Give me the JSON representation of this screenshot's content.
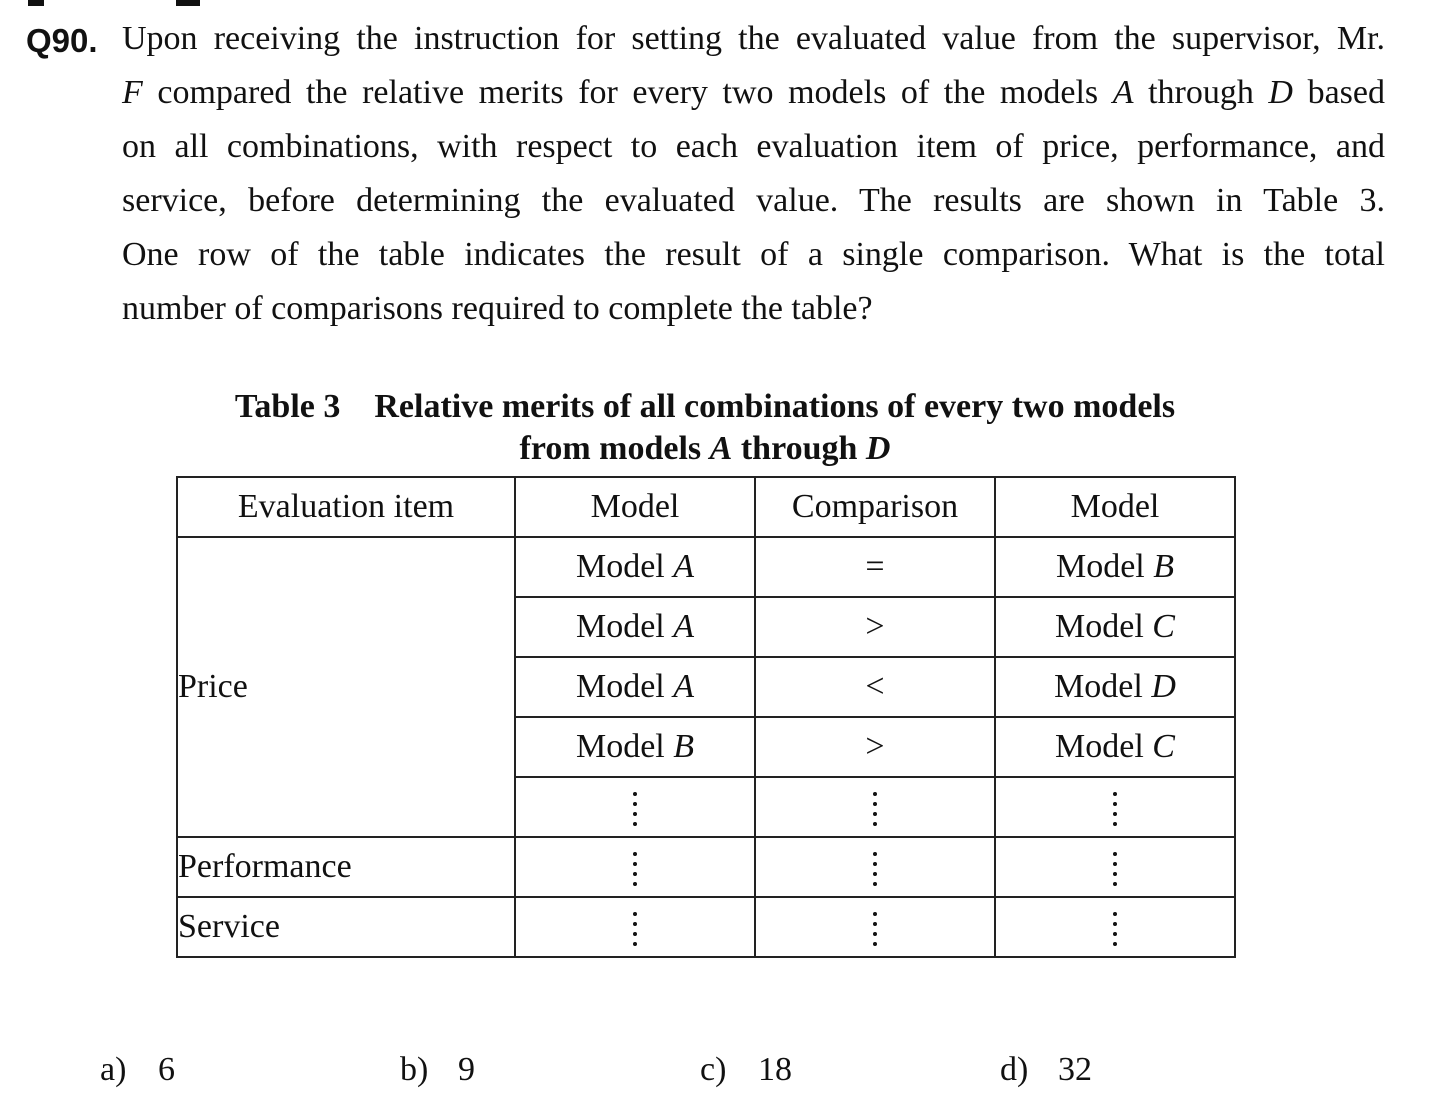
{
  "question": {
    "number": "Q90.",
    "lines": [
      "Upon receiving the instruction for setting the evaluated value from the supervisor, Mr.",
      "F compared the relative merits for every two models of the models A through D based",
      "on all combinations, with respect to each evaluation item of price, performance, and",
      "service, before determining the evaluated value.  The results are shown in Table 3.",
      "One row of the table indicates the result of a single comparison.  What is the total",
      "number of comparisons required to complete the table?"
    ]
  },
  "table": {
    "caption_line1": "Table 3    Relative merits of all combinations of every two models",
    "caption_line2": "from models A through D",
    "headers": [
      "Evaluation item",
      "Model",
      "Comparison",
      "Model"
    ],
    "items": {
      "price": "Price",
      "performance": "Performance",
      "service": "Service"
    },
    "price_rows": [
      {
        "left": "Model A",
        "cmp": "=",
        "right": "Model B"
      },
      {
        "left": "Model A",
        "cmp": ">",
        "right": "Model C"
      },
      {
        "left": "Model A",
        "cmp": "<",
        "right": "Model D"
      },
      {
        "left": "Model B",
        "cmp": ">",
        "right": "Model C"
      }
    ]
  },
  "answers": [
    {
      "label": "a)",
      "value": "6"
    },
    {
      "label": "b)",
      "value": "9"
    },
    {
      "label": "c)",
      "value": "18"
    },
    {
      "label": "d)",
      "value": "32"
    }
  ]
}
